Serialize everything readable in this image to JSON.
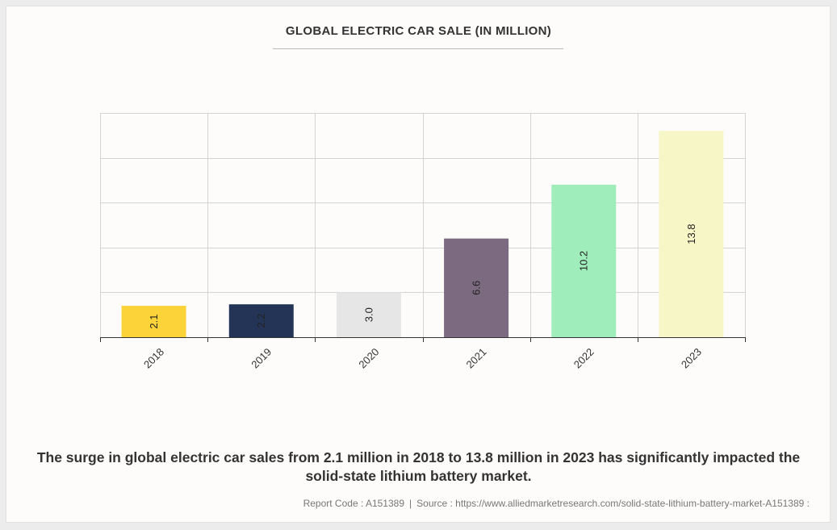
{
  "chart_data": {
    "type": "bar",
    "title": "GLOBAL ELECTRIC CAR SALE (IN MILLION)",
    "categories": [
      "2018",
      "2019",
      "2020",
      "2021",
      "2022",
      "2023"
    ],
    "values": [
      2.1,
      2.2,
      3.0,
      6.6,
      10.2,
      13.8
    ],
    "labels": [
      "2.1",
      "2.2",
      "3.0",
      "6.6",
      "10.2",
      "13.8"
    ],
    "colors": [
      "#fdd33a",
      "#233457",
      "#e6e6e6",
      "#7c6b80",
      "#9fedbb",
      "#f7f6c7"
    ],
    "ylim": [
      0,
      15
    ],
    "grid": true,
    "xlabel": "",
    "ylabel": ""
  },
  "caption": "The surge in global electric car sales from 2.1 million in 2018 to 13.8 million in 2023 has significantly impacted the solid-state lithium battery market.",
  "footer": {
    "report_code": "Report Code : A151389",
    "separator": "|",
    "source": "Source : https://www.alliedmarketresearch.com/solid-state-lithium-battery-market-A151389 :"
  }
}
